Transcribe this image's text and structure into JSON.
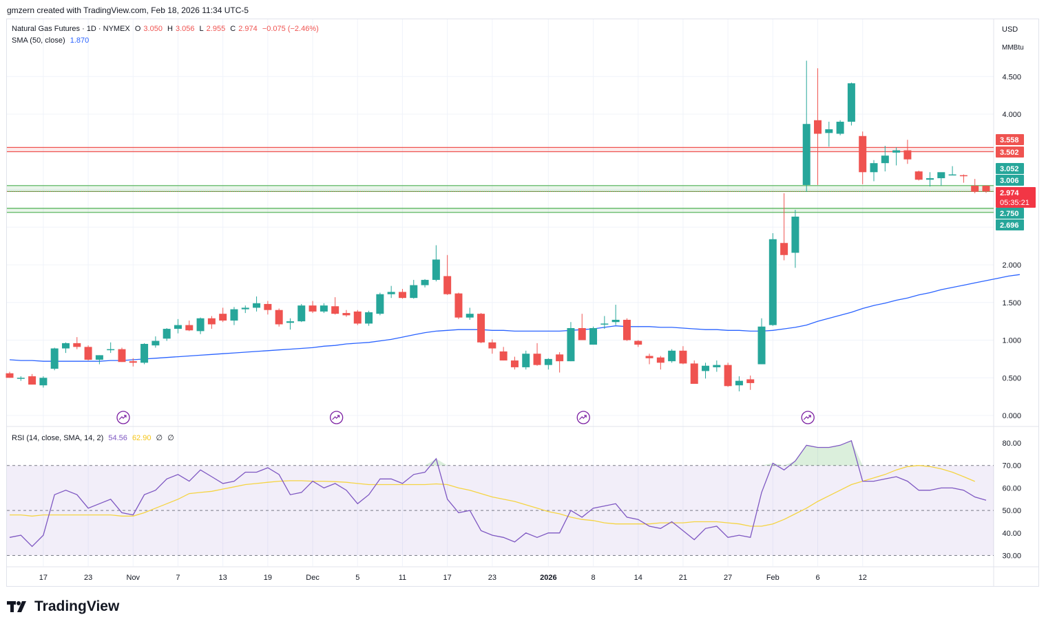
{
  "header": {
    "attribution": "gmzern created with TradingView.com, Feb 18, 2026 11:34 UTC-5"
  },
  "legend": {
    "symbol": "Natural Gas Futures · 1D · NYMEX",
    "open_label": "O",
    "open": "3.050",
    "high_label": "H",
    "high": "3.056",
    "low_label": "L",
    "low": "2.955",
    "close_label": "C",
    "close": "2.974",
    "change": "−0.075 (−2.46%)",
    "sma_label": "SMA (50, close)",
    "sma_value": "1.870",
    "rsi_label": "RSI (14, close, SMA, 14, 2)",
    "rsi_value": "54.56",
    "rsi_sma_value": "62.90",
    "rsi_extra1": "∅",
    "rsi_extra2": "∅"
  },
  "price_axis": {
    "currency": "USD",
    "unit": "MMBtu",
    "ticks": [
      "4.500",
      "4.000",
      "2.000",
      "1.500",
      "1.000",
      "0.500",
      "0.000"
    ],
    "labels": [
      {
        "text": "3.558",
        "value": 3.558,
        "color": "#ef5350"
      },
      {
        "text": "3.502",
        "value": 3.502,
        "color": "#ef5350"
      },
      {
        "text": "3.052",
        "value": 3.052,
        "color": "#26a69a"
      },
      {
        "text": "3.006",
        "value": 3.006,
        "color": "#26a69a"
      },
      {
        "text": "2.974",
        "value": 2.974,
        "color": "#f23645"
      },
      {
        "text": "2.750",
        "value": 2.75,
        "color": "#26a69a"
      },
      {
        "text": "2.696",
        "value": 2.696,
        "color": "#26a69a"
      }
    ],
    "countdown": "05:35:21"
  },
  "rsi_axis": {
    "ticks": [
      "80.00",
      "70.00",
      "60.00",
      "50.00",
      "40.00",
      "30.00"
    ]
  },
  "time_axis": {
    "labels": [
      {
        "text": "17",
        "bold": false
      },
      {
        "text": "23",
        "bold": false
      },
      {
        "text": "Nov",
        "bold": false
      },
      {
        "text": "7",
        "bold": false
      },
      {
        "text": "13",
        "bold": false
      },
      {
        "text": "19",
        "bold": false
      },
      {
        "text": "Dec",
        "bold": false
      },
      {
        "text": "5",
        "bold": false
      },
      {
        "text": "11",
        "bold": false
      },
      {
        "text": "17",
        "bold": false
      },
      {
        "text": "23",
        "bold": false
      },
      {
        "text": "2026",
        "bold": true
      },
      {
        "text": "8",
        "bold": false
      },
      {
        "text": "14",
        "bold": false
      },
      {
        "text": "21",
        "bold": false
      },
      {
        "text": "27",
        "bold": false
      },
      {
        "text": "Feb",
        "bold": false
      },
      {
        "text": "6",
        "bold": false
      },
      {
        "text": "12",
        "bold": false
      }
    ]
  },
  "colors": {
    "up": "#26a69a",
    "down": "#ef5350",
    "sma": "#2962ff",
    "rsi": "#7e57c2",
    "rsi_sma": "#f5d442",
    "resistance": "#ef5350",
    "support": "#4caf50"
  },
  "brand": {
    "name": "TradingView"
  },
  "chart_data": {
    "type": "candlestick",
    "title": "Natural Gas Futures · 1D · NYMEX",
    "ylabel": "USD / MMBtu",
    "ylim": [
      0,
      4.75
    ],
    "grid": true,
    "candles": [
      {
        "o": 0.56,
        "h": 0.58,
        "l": 0.5,
        "c": 0.5
      },
      {
        "o": 0.49,
        "h": 0.52,
        "l": 0.46,
        "c": 0.5
      },
      {
        "o": 0.52,
        "h": 0.55,
        "l": 0.41,
        "c": 0.41
      },
      {
        "o": 0.4,
        "h": 0.52,
        "l": 0.37,
        "c": 0.5
      },
      {
        "o": 0.62,
        "h": 0.9,
        "l": 0.6,
        "c": 0.89
      },
      {
        "o": 0.89,
        "h": 0.97,
        "l": 0.83,
        "c": 0.96
      },
      {
        "o": 0.96,
        "h": 1.04,
        "l": 0.88,
        "c": 0.91
      },
      {
        "o": 0.91,
        "h": 0.93,
        "l": 0.73,
        "c": 0.74
      },
      {
        "o": 0.74,
        "h": 0.8,
        "l": 0.68,
        "c": 0.8
      },
      {
        "o": 0.87,
        "h": 0.97,
        "l": 0.83,
        "c": 0.88
      },
      {
        "o": 0.88,
        "h": 0.9,
        "l": 0.71,
        "c": 0.71
      },
      {
        "o": 0.72,
        "h": 0.76,
        "l": 0.65,
        "c": 0.7
      },
      {
        "o": 0.7,
        "h": 0.96,
        "l": 0.68,
        "c": 0.95
      },
      {
        "o": 0.93,
        "h": 1.05,
        "l": 0.9,
        "c": 0.99
      },
      {
        "o": 1.02,
        "h": 1.16,
        "l": 0.99,
        "c": 1.15
      },
      {
        "o": 1.15,
        "h": 1.28,
        "l": 1.09,
        "c": 1.2
      },
      {
        "o": 1.2,
        "h": 1.26,
        "l": 1.12,
        "c": 1.13
      },
      {
        "o": 1.12,
        "h": 1.3,
        "l": 1.08,
        "c": 1.29
      },
      {
        "o": 1.29,
        "h": 1.32,
        "l": 1.15,
        "c": 1.21
      },
      {
        "o": 1.35,
        "h": 1.43,
        "l": 1.24,
        "c": 1.26
      },
      {
        "o": 1.26,
        "h": 1.44,
        "l": 1.2,
        "c": 1.41
      },
      {
        "o": 1.41,
        "h": 1.46,
        "l": 1.36,
        "c": 1.43
      },
      {
        "o": 1.43,
        "h": 1.58,
        "l": 1.38,
        "c": 1.49
      },
      {
        "o": 1.48,
        "h": 1.52,
        "l": 1.34,
        "c": 1.4
      },
      {
        "o": 1.4,
        "h": 1.42,
        "l": 1.18,
        "c": 1.21
      },
      {
        "o": 1.23,
        "h": 1.29,
        "l": 1.14,
        "c": 1.25
      },
      {
        "o": 1.25,
        "h": 1.48,
        "l": 1.24,
        "c": 1.46
      },
      {
        "o": 1.46,
        "h": 1.52,
        "l": 1.36,
        "c": 1.38
      },
      {
        "o": 1.38,
        "h": 1.49,
        "l": 1.36,
        "c": 1.46
      },
      {
        "o": 1.45,
        "h": 1.57,
        "l": 1.34,
        "c": 1.35
      },
      {
        "o": 1.36,
        "h": 1.4,
        "l": 1.31,
        "c": 1.33
      },
      {
        "o": 1.38,
        "h": 1.4,
        "l": 1.2,
        "c": 1.22
      },
      {
        "o": 1.22,
        "h": 1.39,
        "l": 1.19,
        "c": 1.37
      },
      {
        "o": 1.35,
        "h": 1.63,
        "l": 1.33,
        "c": 1.61
      },
      {
        "o": 1.61,
        "h": 1.72,
        "l": 1.56,
        "c": 1.64
      },
      {
        "o": 1.64,
        "h": 1.68,
        "l": 1.55,
        "c": 1.56
      },
      {
        "o": 1.56,
        "h": 1.8,
        "l": 1.55,
        "c": 1.73
      },
      {
        "o": 1.73,
        "h": 1.81,
        "l": 1.7,
        "c": 1.8
      },
      {
        "o": 1.8,
        "h": 2.26,
        "l": 1.78,
        "c": 2.07
      },
      {
        "o": 1.85,
        "h": 2.13,
        "l": 1.6,
        "c": 1.61
      },
      {
        "o": 1.62,
        "h": 1.63,
        "l": 1.28,
        "c": 1.3
      },
      {
        "o": 1.3,
        "h": 1.43,
        "l": 1.27,
        "c": 1.35
      },
      {
        "o": 1.35,
        "h": 1.36,
        "l": 0.96,
        "c": 0.97
      },
      {
        "o": 0.97,
        "h": 1.01,
        "l": 0.82,
        "c": 0.89
      },
      {
        "o": 0.85,
        "h": 0.91,
        "l": 0.73,
        "c": 0.73
      },
      {
        "o": 0.73,
        "h": 0.78,
        "l": 0.61,
        "c": 0.64
      },
      {
        "o": 0.64,
        "h": 0.86,
        "l": 0.61,
        "c": 0.82
      },
      {
        "o": 0.82,
        "h": 0.96,
        "l": 0.66,
        "c": 0.67
      },
      {
        "o": 0.67,
        "h": 0.76,
        "l": 0.61,
        "c": 0.75
      },
      {
        "o": 0.81,
        "h": 0.84,
        "l": 0.57,
        "c": 0.72
      },
      {
        "o": 0.72,
        "h": 1.24,
        "l": 0.72,
        "c": 1.16
      },
      {
        "o": 1.16,
        "h": 1.35,
        "l": 1.0,
        "c": 1.0
      },
      {
        "o": 0.94,
        "h": 1.18,
        "l": 0.94,
        "c": 1.16
      },
      {
        "o": 1.22,
        "h": 1.32,
        "l": 1.15,
        "c": 1.22
      },
      {
        "o": 1.24,
        "h": 1.47,
        "l": 1.2,
        "c": 1.27
      },
      {
        "o": 1.27,
        "h": 1.29,
        "l": 0.99,
        "c": 1.0
      },
      {
        "o": 0.99,
        "h": 1.0,
        "l": 0.91,
        "c": 0.94
      },
      {
        "o": 0.79,
        "h": 0.82,
        "l": 0.68,
        "c": 0.76
      },
      {
        "o": 0.77,
        "h": 0.79,
        "l": 0.61,
        "c": 0.7
      },
      {
        "o": 0.72,
        "h": 0.88,
        "l": 0.7,
        "c": 0.86
      },
      {
        "o": 0.86,
        "h": 0.92,
        "l": 0.68,
        "c": 0.69
      },
      {
        "o": 0.69,
        "h": 0.73,
        "l": 0.42,
        "c": 0.42
      },
      {
        "o": 0.59,
        "h": 0.7,
        "l": 0.49,
        "c": 0.66
      },
      {
        "o": 0.64,
        "h": 0.73,
        "l": 0.58,
        "c": 0.67
      },
      {
        "o": 0.67,
        "h": 0.7,
        "l": 0.38,
        "c": 0.39
      },
      {
        "o": 0.4,
        "h": 0.52,
        "l": 0.32,
        "c": 0.46
      },
      {
        "o": 0.48,
        "h": 0.53,
        "l": 0.34,
        "c": 0.43
      },
      {
        "o": 0.68,
        "h": 1.29,
        "l": 0.68,
        "c": 1.18
      },
      {
        "o": 1.2,
        "h": 2.42,
        "l": 1.19,
        "c": 2.34
      },
      {
        "o": 2.29,
        "h": 2.95,
        "l": 2.06,
        "c": 2.13
      },
      {
        "o": 2.16,
        "h": 2.73,
        "l": 1.96,
        "c": 2.64
      },
      {
        "o": 3.06,
        "h": 4.71,
        "l": 2.97,
        "c": 3.87
      },
      {
        "o": 3.92,
        "h": 4.61,
        "l": 3.06,
        "c": 3.74
      },
      {
        "o": 3.75,
        "h": 3.9,
        "l": 3.57,
        "c": 3.8
      },
      {
        "o": 3.74,
        "h": 3.92,
        "l": 3.72,
        "c": 3.9
      },
      {
        "o": 3.9,
        "h": 4.42,
        "l": 3.85,
        "c": 4.41
      },
      {
        "o": 3.71,
        "h": 3.77,
        "l": 3.07,
        "c": 3.23
      },
      {
        "o": 3.23,
        "h": 3.39,
        "l": 3.11,
        "c": 3.35
      },
      {
        "o": 3.35,
        "h": 3.58,
        "l": 3.24,
        "c": 3.45
      },
      {
        "o": 3.49,
        "h": 3.56,
        "l": 3.32,
        "c": 3.52
      },
      {
        "o": 3.52,
        "h": 3.66,
        "l": 3.34,
        "c": 3.4
      },
      {
        "o": 3.24,
        "h": 3.25,
        "l": 3.12,
        "c": 3.13
      },
      {
        "o": 3.13,
        "h": 3.23,
        "l": 3.04,
        "c": 3.15
      },
      {
        "o": 3.15,
        "h": 3.22,
        "l": 3.05,
        "c": 3.23
      },
      {
        "o": 3.2,
        "h": 3.31,
        "l": 3.19,
        "c": 3.2
      },
      {
        "o": 3.19,
        "h": 3.2,
        "l": 3.09,
        "c": 3.18
      },
      {
        "o": 3.05,
        "h": 3.14,
        "l": 2.95,
        "c": 2.97
      },
      {
        "o": 3.05,
        "h": 3.056,
        "l": 2.955,
        "c": 2.974
      }
    ],
    "sma_50": [
      0.74,
      0.73,
      0.73,
      0.72,
      0.72,
      0.72,
      0.72,
      0.72,
      0.72,
      0.73,
      0.73,
      0.74,
      0.75,
      0.76,
      0.77,
      0.78,
      0.79,
      0.8,
      0.81,
      0.82,
      0.83,
      0.84,
      0.85,
      0.86,
      0.87,
      0.88,
      0.89,
      0.9,
      0.92,
      0.93,
      0.95,
      0.96,
      0.97,
      0.99,
      1.01,
      1.04,
      1.07,
      1.1,
      1.12,
      1.13,
      1.14,
      1.14,
      1.14,
      1.13,
      1.13,
      1.12,
      1.12,
      1.12,
      1.12,
      1.12,
      1.13,
      1.14,
      1.15,
      1.17,
      1.19,
      1.18,
      1.18,
      1.18,
      1.17,
      1.17,
      1.16,
      1.15,
      1.14,
      1.14,
      1.13,
      1.13,
      1.12,
      1.12,
      1.13,
      1.15,
      1.17,
      1.2,
      1.25,
      1.29,
      1.33,
      1.37,
      1.42,
      1.46,
      1.49,
      1.53,
      1.56,
      1.6,
      1.63,
      1.67,
      1.7,
      1.73,
      1.76,
      1.79,
      1.82,
      1.85,
      1.87
    ],
    "resistance_zone": [
      3.502,
      3.558
    ],
    "support_zone_1": [
      2.974,
      3.052
    ],
    "support_zone_2": [
      2.696,
      2.75
    ],
    "rsi": [
      38,
      39,
      34,
      39,
      57,
      59,
      57,
      51,
      53,
      55,
      49,
      48,
      57,
      59,
      64,
      66,
      63,
      68,
      65,
      62,
      63,
      67,
      67,
      69,
      66,
      57,
      58,
      63,
      60,
      62,
      59,
      53,
      57,
      64,
      64,
      62,
      66,
      67,
      73,
      55,
      49,
      50,
      41,
      39,
      38,
      36,
      40,
      38,
      40,
      40,
      50,
      47,
      51,
      52,
      53,
      47,
      46,
      43,
      42,
      45,
      41,
      37,
      42,
      43,
      38,
      39,
      38,
      58,
      71,
      68,
      72,
      79,
      78,
      78,
      79,
      81,
      63,
      63,
      64,
      65,
      63,
      59,
      59,
      60,
      60,
      59,
      56,
      54.56
    ],
    "rsi_sma": [
      48,
      48,
      47.5,
      48,
      48,
      48,
      48,
      48,
      48,
      48,
      47.5,
      47.5,
      49,
      51,
      53,
      55,
      57.5,
      58,
      58.5,
      59.5,
      60.5,
      61.5,
      62,
      62.5,
      63,
      63.2,
      63.2,
      63,
      63,
      62.8,
      62.5,
      62,
      61.5,
      61.5,
      61.5,
      61.5,
      61.5,
      61.5,
      61.8,
      61.5,
      60,
      59,
      57.5,
      56,
      55,
      54,
      52.5,
      51,
      49.5,
      48.5,
      47,
      46,
      45.5,
      44.5,
      44,
      44,
      44,
      44,
      44.5,
      44.5,
      44.5,
      45,
      45,
      45,
      44.5,
      44,
      43,
      43,
      44,
      46,
      48.5,
      51,
      54,
      56.5,
      59,
      61.5,
      63,
      64.5,
      66,
      68,
      69.5,
      70,
      69.5,
      68.5,
      67,
      65,
      62.9
    ],
    "rsi_ylim": [
      26,
      82
    ],
    "rsi_levels": [
      70,
      50,
      30
    ]
  }
}
